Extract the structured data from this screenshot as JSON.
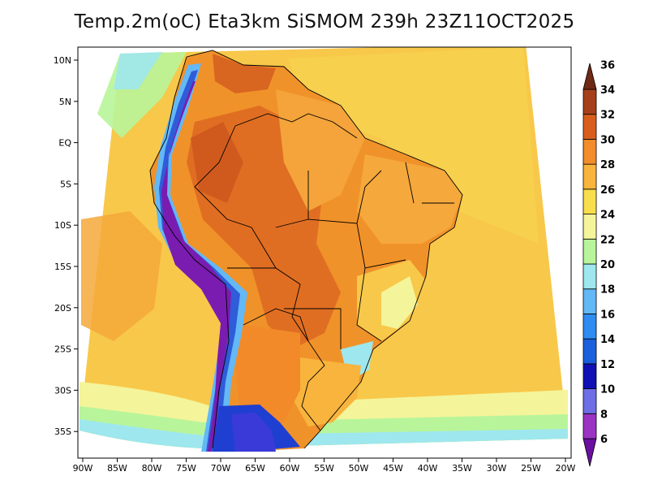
{
  "title": "Temp.2m(oC) Eta3km SiSMOM 239h 23Z11OCT2025",
  "map": {
    "variable": "2m temperature",
    "units": "oC",
    "lat_labels": [
      "10N",
      "5N",
      "EQ",
      "5S",
      "10S",
      "15S",
      "20S",
      "25S",
      "30S",
      "35S"
    ],
    "lon_labels": [
      "90W",
      "85W",
      "80W",
      "75W",
      "70W",
      "65W",
      "60W",
      "55W",
      "50W",
      "45W",
      "40W",
      "35W",
      "30W",
      "25W",
      "20W"
    ],
    "lat_range": [
      -38,
      11
    ],
    "lon_range": [
      -91,
      -20
    ]
  },
  "colorbar": {
    "levels": [
      "6",
      "8",
      "10",
      "12",
      "14",
      "16",
      "18",
      "20",
      "22",
      "24",
      "26",
      "28",
      "30",
      "32",
      "34",
      "36"
    ],
    "colors": [
      "#6a0fa0",
      "#9b34c4",
      "#6e6ee6",
      "#1010b4",
      "#1a5fdc",
      "#2f8cf0",
      "#63b8f6",
      "#9ee7ee",
      "#b8f59a",
      "#f4f49a",
      "#f8de4c",
      "#f8b43c",
      "#f38c2a",
      "#d95e1e",
      "#a6401c",
      "#6e2a14"
    ],
    "ocean_color": "#f8c84a"
  }
}
